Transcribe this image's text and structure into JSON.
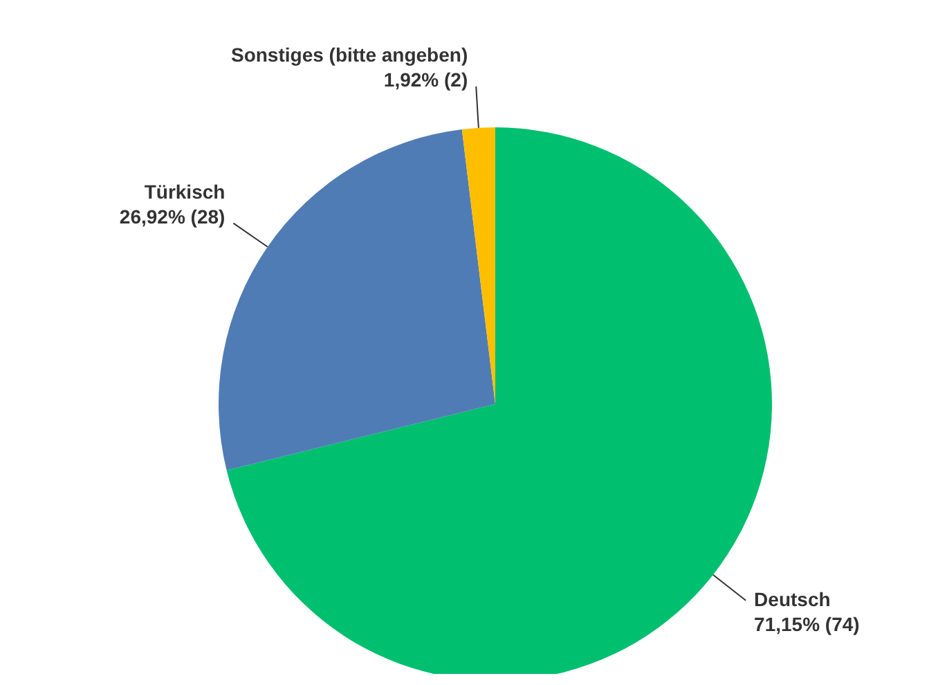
{
  "chart_data": {
    "type": "pie",
    "categories": [
      "Deutsch",
      "Türkisch",
      "Sonstiges (bitte angeben)"
    ],
    "values": [
      74,
      28,
      2
    ],
    "colors": [
      "#00bf6f",
      "#507cb6",
      "#ffbf00"
    ],
    "value_labels": [
      "71,15% (74)",
      "26,92% (28)",
      "1,92% (2)"
    ],
    "legend": false
  }
}
